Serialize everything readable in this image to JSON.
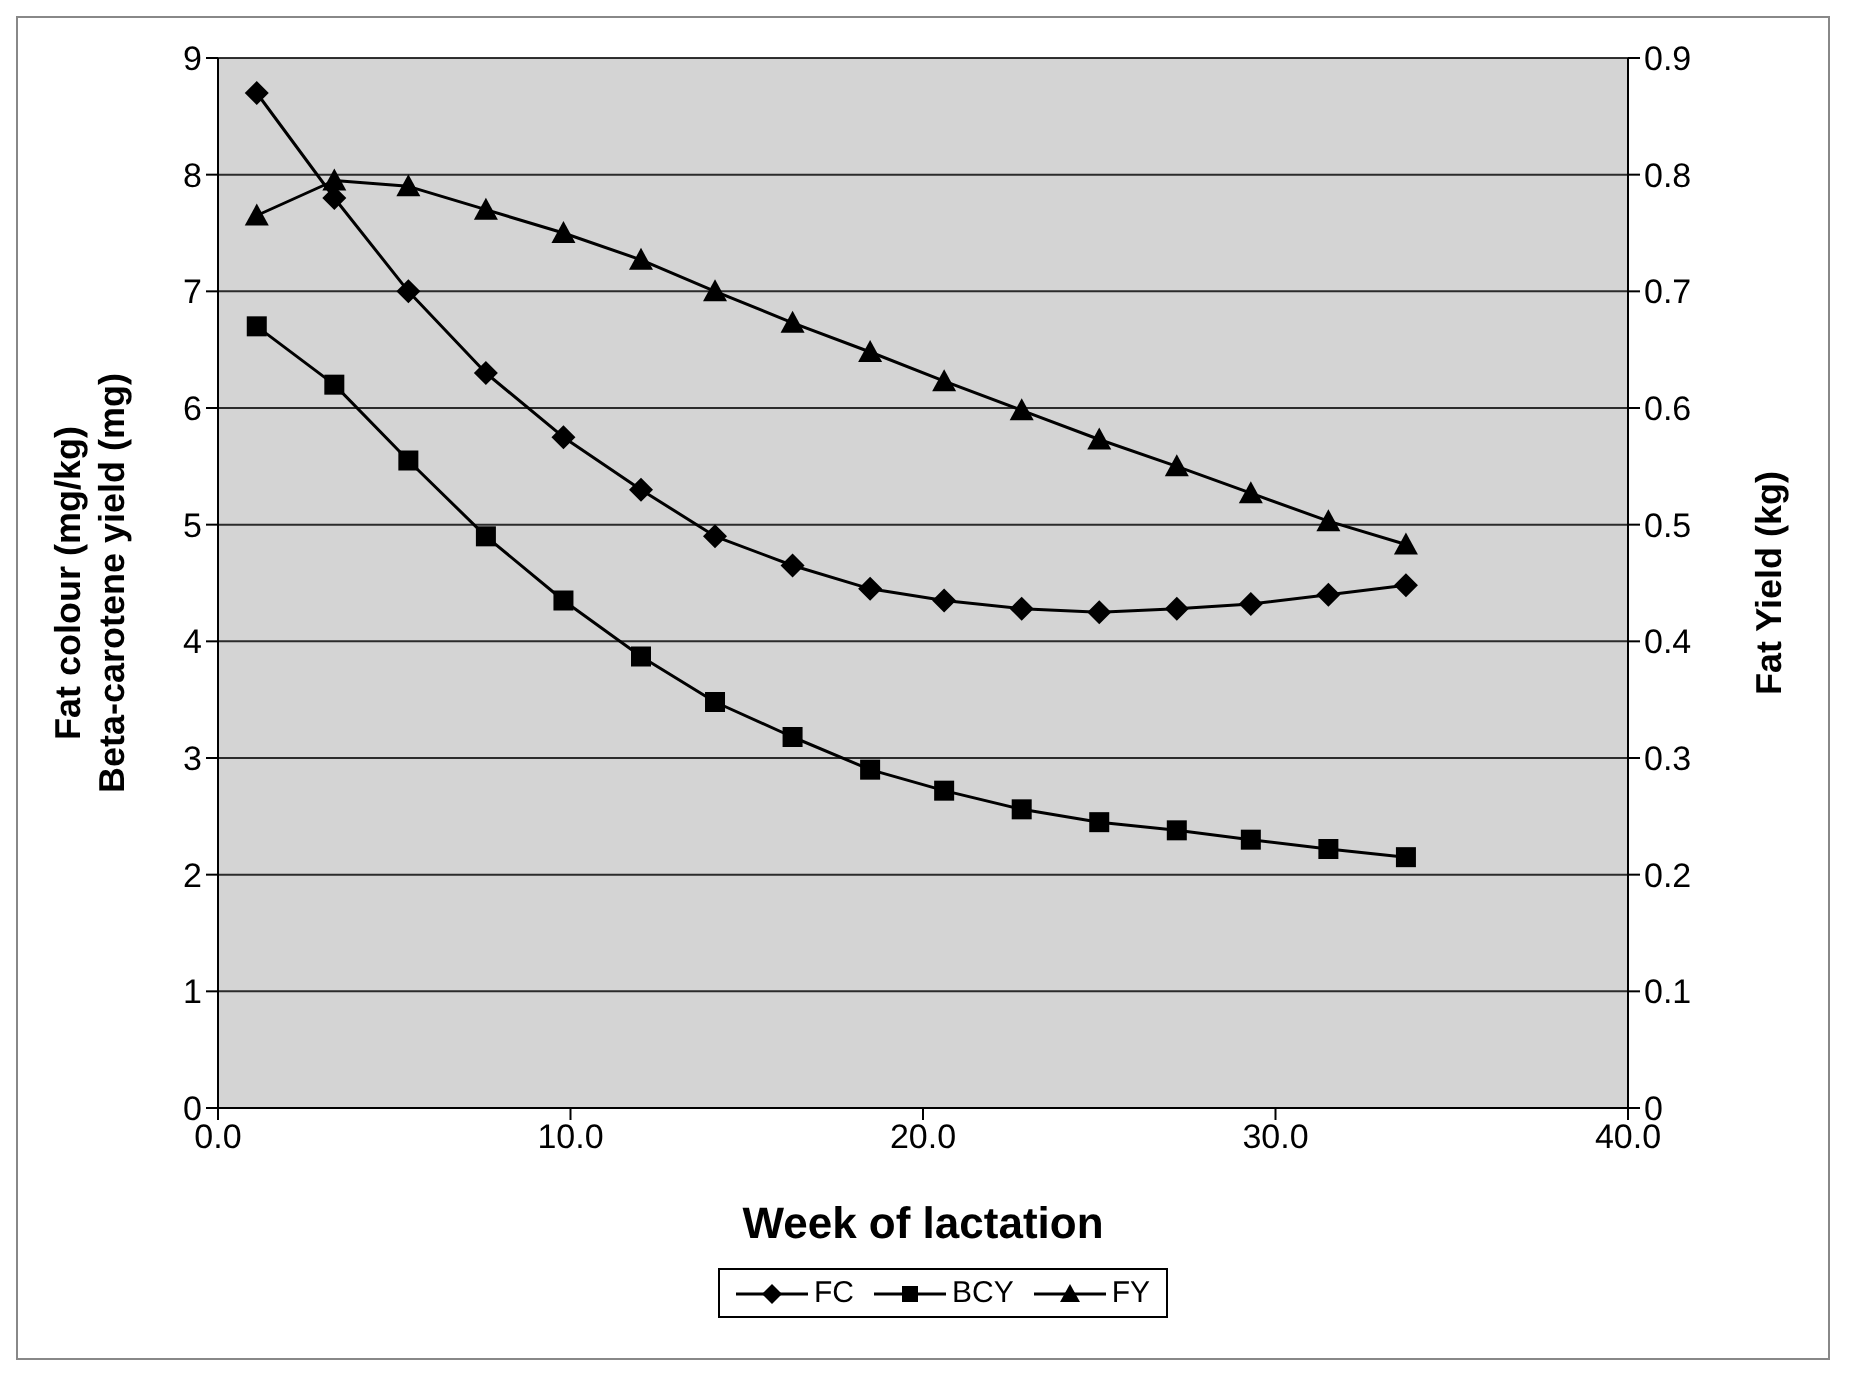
{
  "chart_data": {
    "type": "line",
    "xlabel": "Week of lactation",
    "ylabel": "Fat colour (mg/kg)\nBeta-carotene yield (mg)",
    "y2label": "Fat Yield (kg)",
    "x": [
      1.1,
      3.3,
      5.4,
      7.6,
      9.8,
      12.0,
      14.1,
      16.3,
      18.5,
      20.6,
      22.8,
      25.0,
      27.2,
      29.3,
      31.5,
      33.7
    ],
    "series": [
      {
        "name": "FC",
        "color": "#000000",
        "marker": "diamond",
        "values": [
          8.7,
          7.8,
          7.0,
          6.3,
          5.75,
          5.3,
          4.9,
          4.65,
          4.45,
          4.35,
          4.28,
          4.25,
          4.28,
          4.32,
          4.4,
          4.48
        ]
      },
      {
        "name": "BCY",
        "color": "#000000",
        "marker": "square",
        "values": [
          6.7,
          6.2,
          5.55,
          4.9,
          4.35,
          3.87,
          3.48,
          3.18,
          2.9,
          2.72,
          2.56,
          2.45,
          2.38,
          2.3,
          2.22,
          2.15
        ]
      },
      {
        "name": "FY",
        "color": "#000000",
        "marker": "triangle",
        "axis": "y2",
        "values": [
          0.765,
          0.795,
          0.79,
          0.77,
          0.75,
          0.727,
          0.7,
          0.673,
          0.648,
          0.623,
          0.598,
          0.573,
          0.55,
          0.527,
          0.503,
          0.483
        ]
      }
    ],
    "xlim": [
      0,
      40
    ],
    "xticks": [
      {
        "value": 0,
        "label": "0.0"
      },
      {
        "value": 10,
        "label": "10.0"
      },
      {
        "value": 20,
        "label": "20.0"
      },
      {
        "value": 30,
        "label": "30.0"
      },
      {
        "value": 40,
        "label": "40.0"
      }
    ],
    "ylim": [
      0,
      9
    ],
    "yticks": [
      0,
      1,
      2,
      3,
      4,
      5,
      6,
      7,
      8,
      9
    ],
    "y2lim": [
      0,
      0.9
    ],
    "y2ticks": [
      0,
      0.1,
      0.2,
      0.3,
      0.4,
      0.5,
      0.6,
      0.7,
      0.8,
      0.9
    ],
    "grid": "y",
    "legend": "bottom",
    "line_style": "solid"
  }
}
